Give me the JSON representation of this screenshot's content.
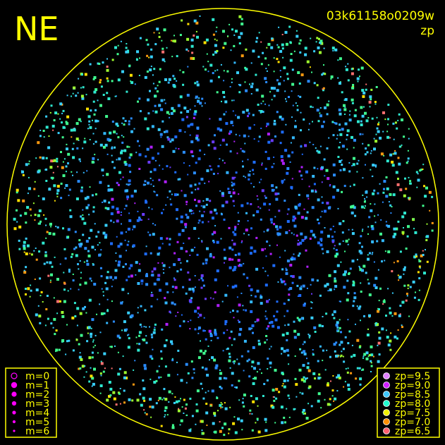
{
  "header": {
    "direction": "NE",
    "image_id": "03k61158o0209w",
    "color_key": "zp"
  },
  "legend_magnitude": [
    "m=0",
    "m=1",
    "m=2",
    "m=3",
    "m=4",
    "m=5",
    "m=6"
  ],
  "legend_zp": [
    "zp=9.5",
    "zp=9.0",
    "zp=8.5",
    "zp=8.0",
    "zp=7.5",
    "zp=7.0",
    "zp=6.5"
  ]
}
